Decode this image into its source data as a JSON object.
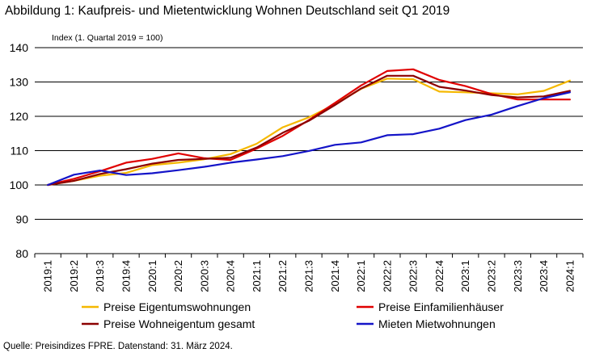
{
  "title": "Abbildung 1: Kaufpreis- und Mietentwicklung Wohnen Deutschland seit Q1 2019",
  "source": "Quelle: Preisindizes FPRE. Datenstand: 31. März 2024.",
  "chart_data": {
    "type": "line",
    "ylabel": "Index (1. Quartal 2019 = 100)",
    "ylim": [
      80,
      140
    ],
    "yticks": [
      80,
      90,
      100,
      110,
      120,
      130,
      140
    ],
    "grid": true,
    "legend_position": "bottom",
    "x": [
      "2019:1",
      "2019:2",
      "2019:3",
      "2019:4",
      "2020:1",
      "2020:2",
      "2020:3",
      "2020:4",
      "2021:1",
      "2021:2",
      "2021:3",
      "2021:4",
      "2022:1",
      "2022:2",
      "2022:3",
      "2022:4",
      "2023:1",
      "2023:2",
      "2023:3",
      "2023:4",
      "2024:1"
    ],
    "series": [
      {
        "name": "Preise Eigentumswohnungen",
        "color": "#F5B800",
        "values": [
          100,
          101.2,
          102.7,
          103.5,
          105.8,
          106.5,
          107.5,
          109.0,
          112.0,
          116.8,
          119.7,
          123.5,
          128.0,
          131.0,
          130.8,
          127.2,
          127.0,
          126.7,
          126.4,
          127.4,
          130.4
        ]
      },
      {
        "name": "Preise Einfamilienhäuser",
        "color": "#E00000",
        "values": [
          100,
          101.8,
          104.0,
          106.5,
          107.6,
          109.2,
          107.8,
          107.3,
          110.6,
          114.3,
          118.9,
          123.9,
          129.0,
          133.2,
          133.7,
          130.6,
          128.8,
          126.5,
          124.9,
          124.9,
          124.9
        ]
      },
      {
        "name": "Preise Wohneigentum gesamt",
        "color": "#8B0000",
        "values": [
          100,
          101.2,
          103.2,
          104.6,
          106.2,
          107.3,
          107.6,
          107.9,
          110.9,
          115.2,
          118.7,
          123.3,
          128.1,
          131.8,
          131.8,
          128.6,
          127.5,
          126.2,
          125.5,
          125.8,
          127.4
        ]
      },
      {
        "name": "Mieten Mietwohnungen",
        "color": "#1414C8",
        "values": [
          100,
          103.0,
          104.2,
          102.9,
          103.4,
          104.3,
          105.3,
          106.5,
          107.4,
          108.4,
          109.9,
          111.7,
          112.4,
          114.5,
          114.8,
          116.4,
          118.9,
          120.5,
          123.0,
          125.3,
          127.0
        ]
      }
    ]
  }
}
